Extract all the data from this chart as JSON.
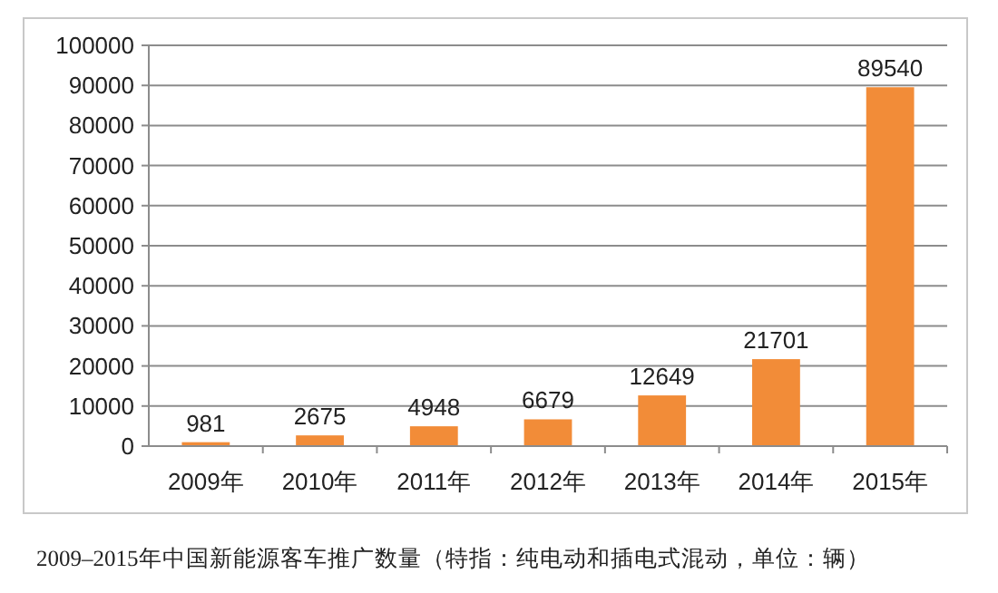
{
  "chart_data": {
    "type": "bar",
    "categories": [
      "2009年",
      "2010年",
      "2011年",
      "2012年",
      "2013年",
      "2014年",
      "2015年"
    ],
    "values": [
      981,
      2675,
      4948,
      6679,
      12649,
      21701,
      89540
    ],
    "color": "#f28c38",
    "ylim": [
      0,
      100000
    ],
    "yticks": [
      0,
      10000,
      20000,
      30000,
      40000,
      50000,
      60000,
      70000,
      80000,
      90000,
      100000
    ],
    "grid": "y",
    "data_labels": true,
    "annotations": [
      "2009–2015年中国新能源客车推广数量（特指：纯电动和插电式混动，单位：辆）"
    ]
  }
}
